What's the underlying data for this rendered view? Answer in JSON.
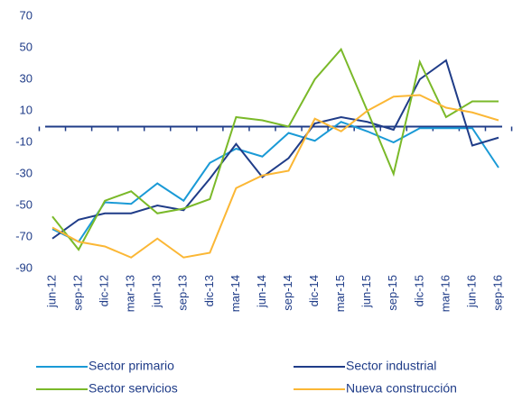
{
  "chart_data": {
    "type": "line",
    "categories": [
      "jun-12",
      "sep-12",
      "dic-12",
      "mar-13",
      "jun-13",
      "sep-13",
      "dic-13",
      "mar-14",
      "jun-14",
      "sep-14",
      "dic-14",
      "mar-15",
      "jun-15",
      "sep-15",
      "dic-15",
      "mar-16",
      "jun-16",
      "sep-16"
    ],
    "series": [
      {
        "name": "Sector primario",
        "color": "#1a9ad6",
        "values": [
          -65,
          -73,
          -48,
          -49,
          -36,
          -47,
          -23,
          -14,
          -19,
          -4,
          -9,
          3,
          -3,
          -10,
          -1,
          -1,
          -1,
          -26
        ]
      },
      {
        "name": "Sector industrial",
        "color": "#1f3c88",
        "values": [
          -71,
          -59,
          -55,
          -55,
          -50,
          -53,
          -33,
          -11,
          -32,
          -20,
          2,
          6,
          3,
          -2,
          30,
          42,
          -12,
          -7
        ]
      },
      {
        "name": "Sector servicios",
        "color": "#7ab929",
        "values": [
          -57,
          -78,
          -47,
          -41,
          -55,
          -52,
          -46,
          6,
          4,
          0,
          30,
          49,
          10,
          -30,
          41,
          6,
          16,
          16
        ]
      },
      {
        "name": "Nueva construcción",
        "color": "#fbb735",
        "values": [
          -64,
          -73,
          -76,
          -83,
          -71,
          -83,
          -80,
          -39,
          -31,
          -28,
          5,
          -3,
          10,
          19,
          20,
          12,
          9,
          4
        ]
      }
    ],
    "ylim": [
      -90,
      70
    ],
    "yticks": [
      -90,
      -70,
      -50,
      -30,
      -10,
      10,
      30,
      50,
      70
    ],
    "grid": false
  }
}
